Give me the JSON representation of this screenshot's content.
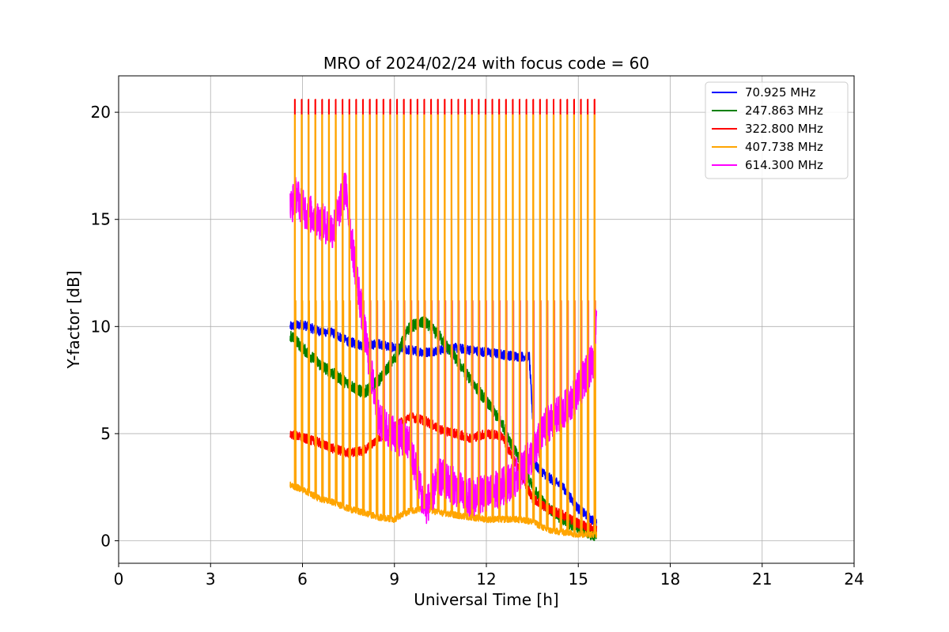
{
  "chart_data": {
    "type": "line",
    "title": "MRO of 2024/02/24 with focus code = 60",
    "xlabel": "Universal Time [h]",
    "ylabel": "Y-factor [dB]",
    "xlim": [
      0,
      24
    ],
    "ylim": [
      -1.05,
      21.7
    ],
    "xticks": [
      0,
      3,
      6,
      9,
      12,
      15,
      18,
      21,
      24
    ],
    "yticks": [
      0,
      5,
      10,
      15,
      20
    ],
    "grid": true,
    "legend_position": "top-right",
    "spikes": {
      "start": 5.75,
      "period": 0.2222,
      "count": 45,
      "orange_top": 19.9,
      "red_top": 20.6,
      "orange_bottom": 11.2,
      "orange_bottom_before_8h": 11.2
    },
    "series": [
      {
        "name": " 70.925 MHz",
        "color": "#0000ff",
        "x": [
          5.6,
          6.0,
          6.5,
          7.0,
          7.5,
          8.0,
          8.5,
          9.0,
          9.5,
          10.0,
          10.5,
          11.0,
          11.5,
          12.0,
          12.5,
          13.0,
          13.4,
          13.6,
          14.0,
          14.5,
          15.0,
          15.6
        ],
        "y": [
          10.0,
          10.1,
          9.8,
          9.7,
          9.3,
          9.1,
          9.2,
          9.0,
          8.9,
          8.8,
          8.9,
          9.0,
          8.9,
          8.8,
          8.7,
          8.6,
          8.6,
          3.5,
          3.0,
          2.5,
          1.5,
          0.8
        ]
      },
      {
        "name": " 247.863 MHz",
        "color": "#008000",
        "x": [
          5.6,
          6.0,
          6.5,
          7.0,
          7.5,
          8.0,
          8.5,
          9.0,
          9.5,
          10.0,
          10.5,
          11.0,
          11.5,
          12.0,
          12.5,
          13.0,
          13.5,
          14.0,
          14.5,
          15.0,
          15.6
        ],
        "y": [
          9.6,
          9.0,
          8.3,
          7.8,
          7.3,
          6.9,
          7.5,
          8.5,
          10.0,
          10.2,
          9.5,
          8.5,
          7.5,
          6.5,
          5.5,
          4.0,
          2.5,
          1.5,
          1.0,
          0.6,
          0.2
        ]
      },
      {
        "name": " 322.800 MHz",
        "color": "#ff0000",
        "x": [
          5.6,
          6.0,
          6.5,
          7.0,
          7.5,
          8.0,
          8.5,
          9.0,
          9.5,
          10.0,
          10.5,
          11.0,
          11.5,
          12.0,
          12.5,
          13.0,
          13.5,
          14.0,
          14.5,
          15.0,
          15.6
        ],
        "y": [
          5.0,
          4.8,
          4.6,
          4.3,
          4.1,
          4.2,
          4.8,
          5.3,
          5.8,
          5.6,
          5.2,
          5.0,
          4.8,
          5.0,
          4.9,
          3.5,
          2.0,
          1.5,
          1.2,
          0.8,
          0.5
        ]
      },
      {
        "name": " 407.738 MHz",
        "color": "#ffa500",
        "x": [
          5.6,
          6.0,
          6.5,
          7.0,
          7.5,
          8.0,
          8.5,
          9.0,
          9.5,
          10.0,
          10.5,
          11.0,
          11.5,
          12.0,
          12.5,
          13.0,
          13.5,
          14.0,
          14.5,
          15.0,
          15.6
        ],
        "y": [
          2.6,
          2.4,
          2.0,
          1.8,
          1.5,
          1.3,
          1.1,
          1.0,
          1.4,
          1.5,
          1.3,
          1.2,
          1.1,
          1.0,
          1.0,
          1.0,
          0.9,
          0.5,
          0.4,
          0.3,
          0.3
        ]
      },
      {
        "name": " 614.300 MHz",
        "color": "#ff00ff",
        "x": [
          5.6,
          5.8,
          6.0,
          6.5,
          7.0,
          7.4,
          7.6,
          8.0,
          8.5,
          9.0,
          9.5,
          10.0,
          10.5,
          11.0,
          11.5,
          12.0,
          12.5,
          13.0,
          13.5,
          14.0,
          14.5,
          15.0,
          15.5,
          15.6
        ],
        "y": [
          15.5,
          16.2,
          15.5,
          15.0,
          14.5,
          16.5,
          14.0,
          10.0,
          5.5,
          5.0,
          4.5,
          1.5,
          3.0,
          2.5,
          2.0,
          2.2,
          2.5,
          3.0,
          4.0,
          5.5,
          6.0,
          7.0,
          8.5,
          11.0
        ]
      }
    ]
  }
}
